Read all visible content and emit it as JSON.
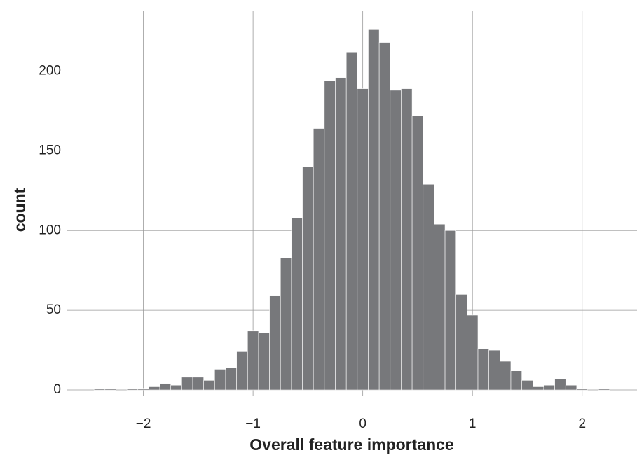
{
  "chart_data": {
    "type": "histogram",
    "x_label": "Overall feature importance",
    "y_label": "count",
    "bins": [
      -2.45,
      -2.35,
      -2.25,
      -2.15,
      -2.05,
      -1.95,
      -1.85,
      -1.75,
      -1.65,
      -1.55,
      -1.45,
      -1.35,
      -1.25,
      -1.15,
      -1.05,
      -0.95,
      -0.85,
      -0.75,
      -0.65,
      -0.55,
      -0.45,
      -0.35,
      -0.25,
      -0.15,
      -0.05,
      0.05,
      0.15,
      0.25,
      0.35,
      0.45,
      0.55,
      0.65,
      0.75,
      0.85,
      0.95,
      1.05,
      1.15,
      1.25,
      1.35,
      1.45,
      1.55,
      1.65,
      1.75,
      1.85,
      1.95,
      2.05,
      2.15,
      2.25
    ],
    "counts": [
      1,
      1,
      0,
      1,
      1,
      2,
      4,
      3,
      8,
      8,
      6,
      13,
      14,
      24,
      37,
      36,
      59,
      83,
      108,
      140,
      164,
      194,
      196,
      212,
      189,
      226,
      218,
      188,
      189,
      172,
      129,
      104,
      100,
      60,
      47,
      26,
      25,
      18,
      12,
      6,
      2,
      3,
      7,
      3,
      1,
      0,
      1
    ],
    "color": "#77787b",
    "xlim": [
      -2.7,
      2.5
    ],
    "ylim": [
      -3.5,
      238
    ],
    "xticks": [
      {
        "value": -2,
        "label": "−2"
      },
      {
        "value": -1,
        "label": "−1"
      },
      0,
      1,
      2
    ],
    "yticks": [
      0,
      50,
      100,
      150,
      200
    ],
    "grid": true
  }
}
